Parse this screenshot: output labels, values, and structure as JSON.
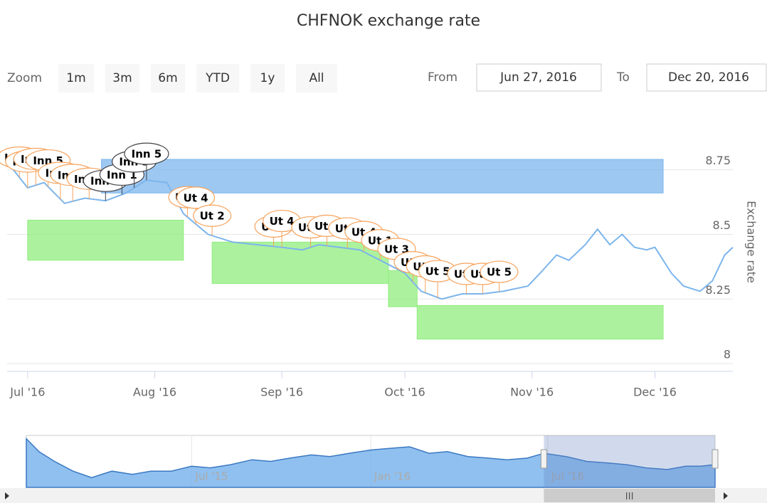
{
  "chart_data": {
    "type": "line",
    "title": "CHFNOK exchange rate",
    "y_axis_label": "Exchange rate",
    "x": [
      "2016-06-27",
      "2016-07-01",
      "2016-07-05",
      "2016-07-10",
      "2016-07-15",
      "2016-07-20",
      "2016-07-25",
      "2016-07-30",
      "2016-08-04",
      "2016-08-08",
      "2016-08-14",
      "2016-08-20",
      "2016-08-26",
      "2016-09-01",
      "2016-09-06",
      "2016-09-10",
      "2016-09-15",
      "2016-09-20",
      "2016-09-25",
      "2016-10-01",
      "2016-10-05",
      "2016-10-10",
      "2016-10-15",
      "2016-10-20",
      "2016-10-25",
      "2016-10-31",
      "2016-11-03",
      "2016-11-07",
      "2016-11-10",
      "2016-11-14",
      "2016-11-17",
      "2016-11-20",
      "2016-11-23",
      "2016-11-26",
      "2016-11-29",
      "2016-12-01",
      "2016-12-05",
      "2016-12-08",
      "2016-12-12",
      "2016-12-15",
      "2016-12-18",
      "2016-12-20"
    ],
    "values": [
      8.76,
      8.68,
      8.7,
      8.62,
      8.64,
      8.63,
      8.66,
      8.71,
      8.7,
      8.58,
      8.5,
      8.47,
      8.46,
      8.45,
      8.44,
      8.46,
      8.45,
      8.44,
      8.4,
      8.35,
      8.28,
      8.25,
      8.27,
      8.27,
      8.28,
      8.3,
      8.35,
      8.42,
      8.4,
      8.46,
      8.52,
      8.46,
      8.5,
      8.45,
      8.44,
      8.45,
      8.35,
      8.3,
      8.28,
      8.32,
      8.42,
      8.45
    ],
    "color": "#7cb5ec",
    "xlim": [
      "2016-06-26",
      "2016-12-20"
    ],
    "xticks": [
      {
        "value": "2016-07-01",
        "label": "Jul '16"
      },
      {
        "value": "2016-08-01",
        "label": "Aug '16"
      },
      {
        "value": "2016-09-01",
        "label": "Sep '16"
      },
      {
        "value": "2016-10-01",
        "label": "Oct '16"
      },
      {
        "value": "2016-11-01",
        "label": "Nov '16"
      },
      {
        "value": "2016-12-01",
        "label": "Dec '16"
      }
    ],
    "ylim": [
      7.97,
      8.98
    ],
    "yticks": [
      8,
      8.25,
      8.5,
      8.75
    ],
    "grid": true,
    "plot_bands": [
      {
        "start": "2016-07-19",
        "end": "2016-12-03",
        "from": 8.66,
        "to": 8.79,
        "color": "#7cb5ec"
      },
      {
        "start": "2016-07-01",
        "end": "2016-08-08",
        "from": 8.4,
        "to": 8.555,
        "color": "#90ed7d"
      },
      {
        "start": "2016-08-15",
        "end": "2016-09-27",
        "from": 8.31,
        "to": 8.47,
        "color": "#90ed7d"
      },
      {
        "start": "2016-09-27",
        "end": "2016-10-04",
        "from": 8.22,
        "to": 8.36,
        "color": "#90ed7d"
      },
      {
        "start": "2016-10-04",
        "end": "2016-12-03",
        "from": 8.095,
        "to": 8.225,
        "color": "#90ed7d"
      }
    ],
    "flags": [
      {
        "x": "2016-06-29",
        "title": "Inn 1",
        "color": "#f7a35c"
      },
      {
        "x": "2016-07-01",
        "title": "Inn 3",
        "color": "#f7a35c"
      },
      {
        "x": "2016-07-03",
        "title": "Inn 5",
        "color": "#f7a35c"
      },
      {
        "x": "2016-07-06",
        "title": "Inn 5",
        "color": "#f7a35c"
      },
      {
        "x": "2016-07-09",
        "title": "Inn 5",
        "color": "#f7a35c"
      },
      {
        "x": "2016-07-12",
        "title": "Inn 4",
        "color": "#f7a35c"
      },
      {
        "x": "2016-07-16",
        "title": "Inn 5",
        "color": "#f7a35c"
      },
      {
        "x": "2016-07-20",
        "title": "Inn 4",
        "color": "#434348"
      },
      {
        "x": "2016-07-24",
        "title": "Inn 1",
        "color": "#434348"
      },
      {
        "x": "2016-07-27",
        "title": "Inn 3",
        "color": "#434348"
      },
      {
        "x": "2016-07-30",
        "title": "Inn 5",
        "color": "#434348"
      },
      {
        "x": "2016-08-09",
        "title": "Ut 5",
        "color": "#f7a35c"
      },
      {
        "x": "2016-08-11",
        "title": "Ut 4",
        "color": "#f7a35c"
      },
      {
        "x": "2016-08-15",
        "title": "Ut 2",
        "color": "#f7a35c"
      },
      {
        "x": "2016-08-30",
        "title": "Ut 5",
        "color": "#f7a35c"
      },
      {
        "x": "2016-09-01",
        "title": "Ut 4",
        "color": "#f7a35c"
      },
      {
        "x": "2016-09-08",
        "title": "Ut 3",
        "color": "#f7a35c"
      },
      {
        "x": "2016-09-12",
        "title": "Ut 4",
        "color": "#f7a35c"
      },
      {
        "x": "2016-09-17",
        "title": "Ut 4",
        "color": "#f7a35c"
      },
      {
        "x": "2016-09-21",
        "title": "Ut 4",
        "color": "#f7a35c"
      },
      {
        "x": "2016-09-25",
        "title": "Ut 1",
        "color": "#f7a35c"
      },
      {
        "x": "2016-09-29",
        "title": "Ut 3",
        "color": "#f7a35c"
      },
      {
        "x": "2016-10-03",
        "title": "Ut 1",
        "color": "#f7a35c"
      },
      {
        "x": "2016-10-06",
        "title": "Ut 2",
        "color": "#f7a35c"
      },
      {
        "x": "2016-10-09",
        "title": "Ut 5",
        "color": "#f7a35c"
      },
      {
        "x": "2016-10-16",
        "title": "Ut 3",
        "color": "#f7a35c"
      },
      {
        "x": "2016-10-20",
        "title": "Ut 5",
        "color": "#f7a35c"
      },
      {
        "x": "2016-10-24",
        "title": "Ut 5",
        "color": "#f7a35c"
      }
    ],
    "range_selector": {
      "zoom_label": "Zoom",
      "buttons": [
        "1m",
        "3m",
        "6m",
        "YTD",
        "1y",
        "All"
      ],
      "from_label": "From",
      "from": "Jun 27, 2016",
      "to_label": "To",
      "to": "Dec 20, 2016"
    },
    "navigator": {
      "x": [
        "2015-01-12",
        "2015-01-25",
        "2015-02-10",
        "2015-03-01",
        "2015-03-20",
        "2015-04-10",
        "2015-05-01",
        "2015-05-20",
        "2015-06-10",
        "2015-07-01",
        "2015-07-20",
        "2015-08-10",
        "2015-09-01",
        "2015-09-20",
        "2015-10-10",
        "2015-11-01",
        "2015-11-20",
        "2015-12-10",
        "2016-01-01",
        "2016-01-20",
        "2016-02-10",
        "2016-03-01",
        "2016-03-20",
        "2016-04-10",
        "2016-05-01",
        "2016-05-20",
        "2016-06-10",
        "2016-06-27",
        "2016-07-20",
        "2016-08-10",
        "2016-09-01",
        "2016-09-20",
        "2016-10-10",
        "2016-11-01",
        "2016-11-20",
        "2016-12-05",
        "2016-12-20"
      ],
      "values": [
        9.3,
        8.9,
        8.6,
        8.3,
        8.1,
        8.3,
        8.2,
        8.3,
        8.3,
        8.45,
        8.4,
        8.5,
        8.65,
        8.6,
        8.7,
        8.8,
        8.75,
        8.85,
        8.95,
        9.0,
        9.05,
        8.85,
        8.9,
        8.75,
        8.7,
        8.65,
        8.7,
        8.85,
        8.75,
        8.6,
        8.55,
        8.5,
        8.4,
        8.35,
        8.45,
        8.45,
        8.5
      ],
      "xlim": [
        "2015-01-12",
        "2016-12-20"
      ],
      "ylim": [
        7.8,
        9.4
      ],
      "xticks": [
        {
          "value": "2015-07-01",
          "label": "Jul '15"
        },
        {
          "value": "2016-01-01",
          "label": "Jan '16"
        },
        {
          "value": "2016-07-01",
          "label": "Jul '16"
        }
      ],
      "color": "#7cb5ec"
    }
  }
}
